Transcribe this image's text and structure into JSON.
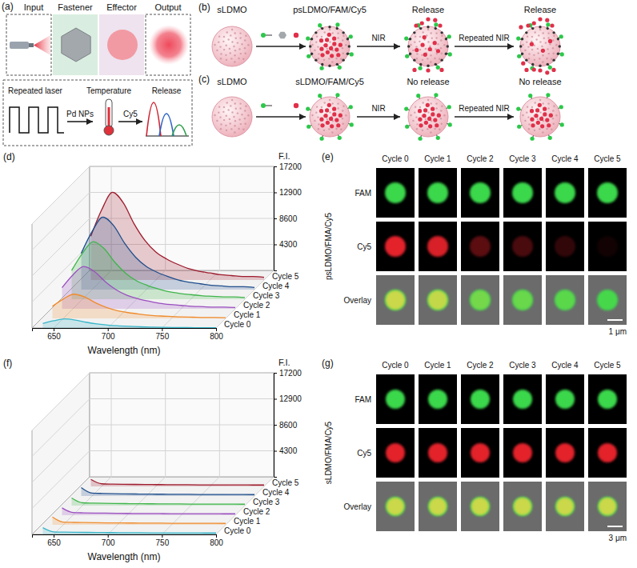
{
  "panel_a": {
    "panel_label": "(a)",
    "columns": [
      "Input",
      "Fastener",
      "Effector",
      "Output"
    ],
    "process": {
      "input": "Repeated laser",
      "arrow_1": "Pd NPs",
      "middle": "Temperature",
      "arrow_2": "Cy5",
      "output": "Release"
    }
  },
  "panel_b": {
    "panel_label": "(b)",
    "stages": [
      "sLDMO",
      "psLDMO/FAM/Cy5",
      "Release",
      "Release"
    ],
    "arrow_labels": [
      "NIR",
      "Repeated NIR"
    ]
  },
  "panel_c": {
    "panel_label": "(c)",
    "stages": [
      "sLDMO",
      "sLDMO/FAM/Cy5",
      "No release",
      "No release"
    ],
    "arrow_labels": [
      "NIR",
      "Repeated NIR"
    ]
  },
  "chart_data": [
    {
      "type": "area",
      "panel_label": "(d)",
      "x_label": "Wavelength (nm)",
      "y_label": "F.I.",
      "x": [
        640,
        650,
        660,
        670,
        680,
        690,
        700,
        710,
        720,
        730,
        740,
        750,
        760,
        770,
        780,
        790,
        800
      ],
      "xlim": [
        630,
        800
      ],
      "xticks": [
        650,
        700,
        750,
        800
      ],
      "ylim": [
        0,
        17200
      ],
      "yticks": [
        4300,
        8600,
        12900,
        17200
      ],
      "grid": true,
      "series": [
        {
          "name": "Cycle 0",
          "color": "#38b6c9",
          "values": [
            750,
            1200,
            1500,
            1320,
            960,
            680,
            480,
            360,
            270,
            200,
            150,
            120,
            90,
            80,
            60,
            60,
            50
          ]
        },
        {
          "name": "Cycle 1",
          "color": "#f08c2c",
          "values": [
            2000,
            3200,
            4000,
            3520,
            2560,
            1800,
            1280,
            960,
            720,
            520,
            400,
            320,
            240,
            200,
            160,
            160,
            120
          ]
        },
        {
          "name": "Cycle 2",
          "color": "#9b4fc0",
          "values": [
            3500,
            5600,
            7000,
            6160,
            4480,
            3150,
            2240,
            1680,
            1260,
            910,
            700,
            560,
            420,
            350,
            280,
            280,
            210
          ]
        },
        {
          "name": "Cycle 3",
          "color": "#3fb54a",
          "values": [
            4750,
            7600,
            9500,
            8360,
            6080,
            4280,
            3040,
            2280,
            1710,
            1240,
            950,
            760,
            570,
            480,
            380,
            380,
            290
          ]
        },
        {
          "name": "Cycle 4",
          "color": "#1f4e8c",
          "values": [
            6000,
            9600,
            12000,
            10560,
            7680,
            5400,
            3840,
            2880,
            2160,
            1560,
            1200,
            960,
            720,
            600,
            480,
            480,
            360
          ]
        },
        {
          "name": "Cycle 5",
          "color": "#9e1b2d",
          "values": [
            7250,
            11600,
            14500,
            12760,
            9280,
            6530,
            4640,
            3480,
            2610,
            1890,
            1450,
            1160,
            870,
            730,
            580,
            580,
            440
          ]
        }
      ]
    },
    {
      "type": "area",
      "panel_label": "(f)",
      "x_label": "Wavelength (nm)",
      "y_label": "F.I.",
      "x": [
        640,
        650,
        660,
        670,
        680,
        690,
        700,
        710,
        720,
        730,
        740,
        750,
        760,
        770,
        780,
        790,
        800
      ],
      "xlim": [
        630,
        800
      ],
      "xticks": [
        650,
        700,
        750,
        800
      ],
      "ylim": [
        0,
        17200
      ],
      "yticks": [
        4300,
        8600,
        12900,
        17200
      ],
      "grid": true,
      "series": [
        {
          "name": "Cycle 0",
          "color": "#38b6c9",
          "values": [
            1100,
            420,
            380,
            350,
            330,
            310,
            300,
            290,
            280,
            270,
            260,
            250,
            250,
            240,
            240,
            230,
            230
          ]
        },
        {
          "name": "Cycle 1",
          "color": "#f08c2c",
          "values": [
            1300,
            450,
            400,
            370,
            340,
            320,
            310,
            300,
            290,
            280,
            270,
            260,
            250,
            250,
            240,
            240,
            230
          ]
        },
        {
          "name": "Cycle 2",
          "color": "#9b4fc0",
          "values": [
            1200,
            440,
            390,
            360,
            340,
            320,
            300,
            290,
            280,
            270,
            260,
            260,
            250,
            240,
            240,
            230,
            230
          ]
        },
        {
          "name": "Cycle 3",
          "color": "#3fb54a",
          "values": [
            1250,
            460,
            410,
            370,
            350,
            330,
            310,
            300,
            290,
            280,
            270,
            260,
            250,
            250,
            240,
            240,
            230
          ]
        },
        {
          "name": "Cycle 4",
          "color": "#1f4e8c",
          "values": [
            1400,
            480,
            420,
            380,
            350,
            330,
            310,
            300,
            290,
            280,
            270,
            260,
            260,
            250,
            240,
            240,
            230
          ]
        },
        {
          "name": "Cycle 5",
          "color": "#9e1b2d",
          "values": [
            1150,
            430,
            380,
            350,
            330,
            310,
            300,
            290,
            280,
            270,
            260,
            250,
            250,
            240,
            240,
            230,
            230
          ]
        }
      ]
    }
  ],
  "panel_e": {
    "panel_label": "(e)",
    "columns": [
      "Cycle 0",
      "Cycle 1",
      "Cycle 2",
      "Cycle 3",
      "Cycle 4",
      "Cycle 5"
    ],
    "rows": [
      "FAM",
      "Cy5",
      "Overlay"
    ],
    "sample": "psLDMO/FMA/Cy5",
    "scale_bar": "1 μm"
  },
  "panel_g": {
    "panel_label": "(g)",
    "columns": [
      "Cycle 0",
      "Cycle 1",
      "Cycle 2",
      "Cycle 3",
      "Cycle 4",
      "Cycle 5"
    ],
    "rows": [
      "FAM",
      "Cy5",
      "Overlay"
    ],
    "sample": "sLDMO/FMA/Cy5",
    "scale_bar": "3 μm"
  }
}
